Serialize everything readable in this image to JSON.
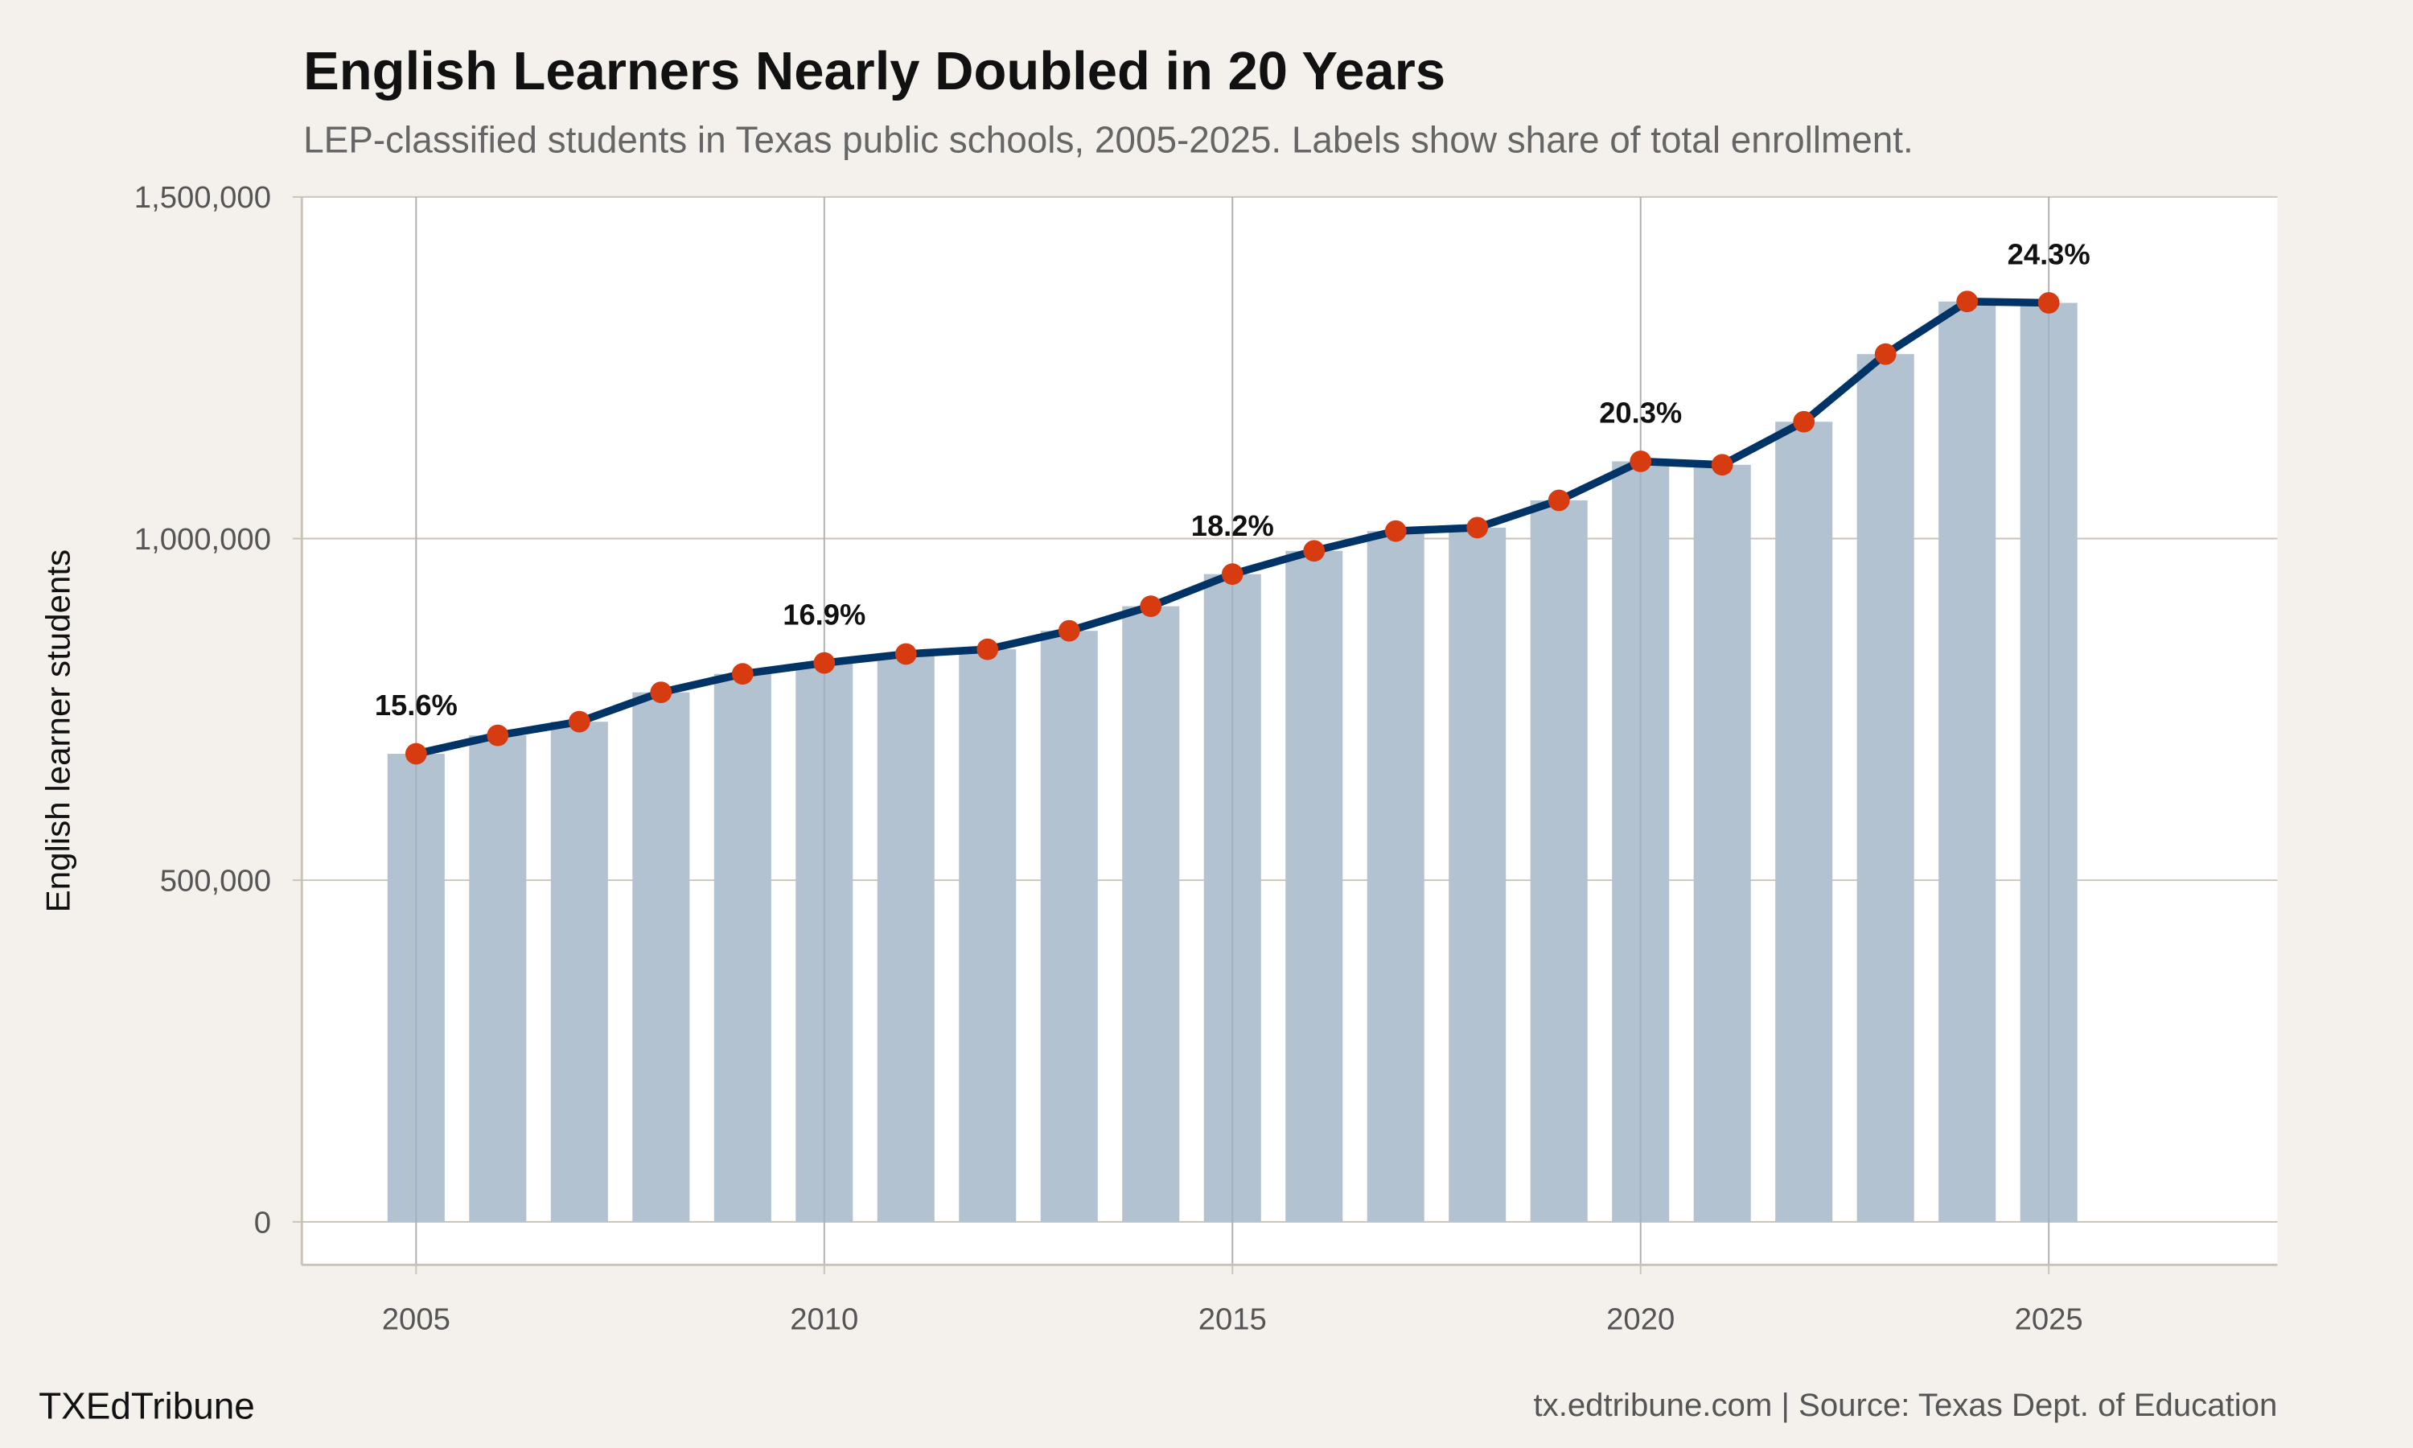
{
  "title": "English Learners Nearly Doubled in 20 Years",
  "subtitle": "LEP-classified students in Texas public schools, 2005-2025. Labels show share of total enrollment.",
  "brand": "TXEdTribune",
  "source": "tx.edtribune.com | Source: Texas Dept. of Education",
  "colors": {
    "bar": "#b3c2d1",
    "line": "#003366",
    "point": "#d63c10",
    "background": "#f4f1ec",
    "panel": "#ffffff",
    "grid": "#c8c2b8"
  },
  "chart_data": {
    "type": "bar",
    "overlay": "line",
    "title": "English Learners Nearly Doubled in 20 Years",
    "xlabel": "",
    "ylabel": "English learner students",
    "x": [
      2005,
      2006,
      2007,
      2008,
      2009,
      2010,
      2011,
      2012,
      2013,
      2014,
      2015,
      2016,
      2017,
      2018,
      2019,
      2020,
      2021,
      2022,
      2023,
      2024,
      2025
    ],
    "values": [
      685000,
      712000,
      732000,
      775000,
      802000,
      818000,
      831000,
      838000,
      865000,
      901000,
      948000,
      982000,
      1011000,
      1016000,
      1056000,
      1113000,
      1108000,
      1171000,
      1270000,
      1347000,
      1345000
    ],
    "xlim": [
      2003.6,
      2027.8
    ],
    "ylim": [
      -63000,
      1500000
    ],
    "xticks": [
      "2005",
      "2010",
      "2015",
      "2020",
      "2025"
    ],
    "yticks": [
      "0",
      "500,000",
      "1,000,000",
      "1,500,000"
    ],
    "annotations": [
      {
        "x": 2005,
        "label": "15.6%"
      },
      {
        "x": 2010,
        "label": "16.9%"
      },
      {
        "x": 2015,
        "label": "18.2%"
      },
      {
        "x": 2020,
        "label": "20.3%"
      },
      {
        "x": 2025,
        "label": "24.3%"
      }
    ],
    "grid": true,
    "legend": "none"
  }
}
